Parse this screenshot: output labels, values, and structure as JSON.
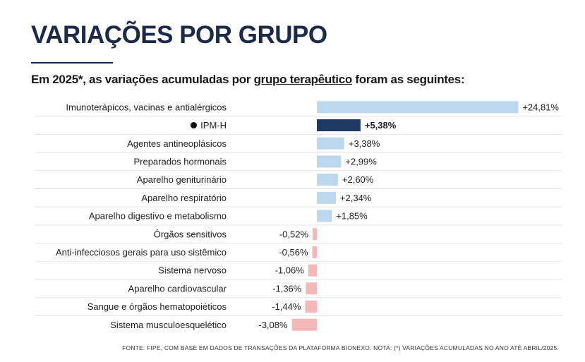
{
  "header": {
    "title": "VARIAÇÕES POR GRUPO",
    "subtitle_before": "Em 2025*, as variações acumuladas por ",
    "subtitle_link": "grupo terapêutico",
    "subtitle_after": " foram as seguintes:"
  },
  "footer": {
    "source": "FONTE: FIPE, COM BASE EM DADOS DE TRANSAÇÕES DA PLATAFORMA BIONEXO. NOTA: (*) VARIAÇÕES ACUMULADAS NO ANO ATÉ ABRIL/2025."
  },
  "colors": {
    "positive": "#bdd7ee",
    "highlight": "#1f3864",
    "negative": "#f4b8b8",
    "grid": "#e3e3e3"
  },
  "chart_data": {
    "type": "bar",
    "orientation": "horizontal",
    "grid": false,
    "categories": [
      "Imunoterápicos, vacinas e antialérgicos",
      "IPM-H",
      "Agentes antineoplásicos",
      "Preparados hormonais",
      "Aparelho geniturinário",
      "Aparelho respiratório",
      "Aparelho digestivo e metabolismo",
      "Órgãos sensitivos",
      "Anti-infecciosos gerais para uso sistêmico",
      "Sistema nervoso",
      "Aparelho cardiovascular",
      "Sangue e órgãos hematopoiéticos",
      "Sistema musculoesquelético"
    ],
    "values": [
      24.81,
      5.38,
      3.38,
      2.99,
      2.6,
      2.34,
      1.85,
      -0.52,
      -0.56,
      -1.06,
      -1.36,
      -1.44,
      -3.08
    ],
    "value_labels": [
      "+24,81%",
      "+5,38%",
      "+3,38%",
      "+2,99%",
      "+2,60%",
      "+2,34%",
      "+1,85%",
      "-0,52%",
      "-0,56%",
      "-1,06%",
      "-1,36%",
      "-1,44%",
      "-3,08%"
    ],
    "highlight_category": "IPM-H",
    "xlim": [
      -3.08,
      24.81
    ]
  }
}
